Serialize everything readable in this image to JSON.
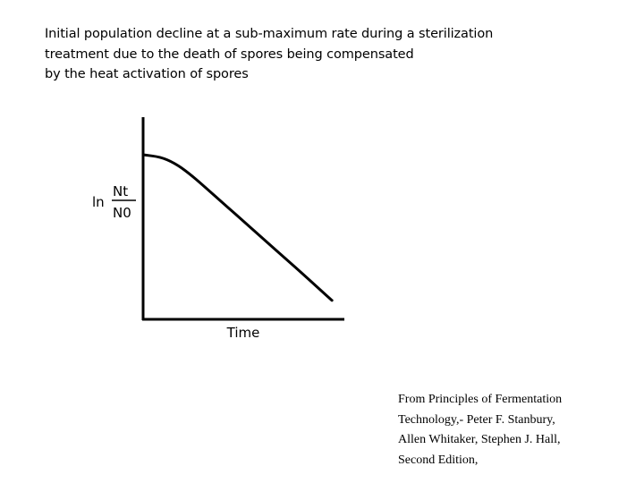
{
  "caption": {
    "lines": [
      "Initial population decline at a sub-maximum rate during a sterilization",
      "treatment due to the death of spores being compensated",
      "by the heat activation of spores"
    ]
  },
  "source": {
    "lines": [
      "From Principles of Fermentation",
      "Technology,- Peter F. Stanbury,",
      "Allen Whitaker, Stephen J. Hall,",
      "Second Edition,"
    ]
  },
  "chart_data": {
    "type": "line",
    "xlabel": "Time",
    "ylabel": {
      "prefix": "ln",
      "numerator": "Nt",
      "denominator": "N0"
    },
    "ylim": [
      0,
      1
    ],
    "xlim": [
      0,
      1
    ],
    "grid": false,
    "series": [
      {
        "x": [
          0.0,
          0.08,
          0.15,
          0.22,
          0.3,
          0.4,
          0.5,
          0.6,
          0.7,
          0.8,
          0.93
        ],
        "values": [
          0.82,
          0.81,
          0.78,
          0.73,
          0.66,
          0.57,
          0.48,
          0.39,
          0.3,
          0.21,
          0.09
        ]
      }
    ],
    "colors": {
      "line": "#000000",
      "axis": "#000000"
    }
  }
}
